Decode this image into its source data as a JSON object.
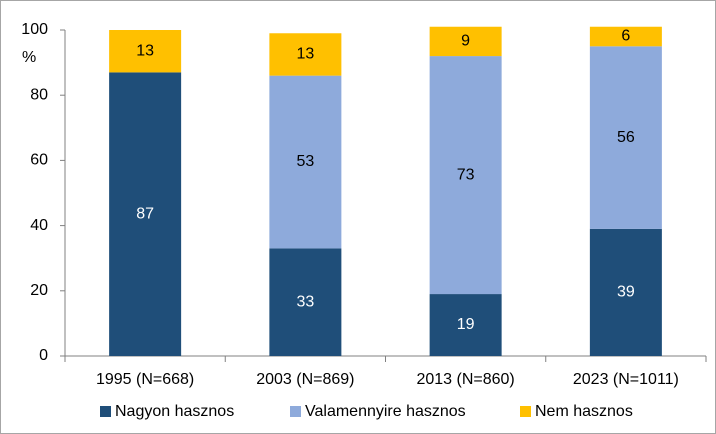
{
  "chart_data": {
    "type": "stacked_bar",
    "categories": [
      "1995 (N=668)",
      "2003 (N=869)",
      "2013 (N=860)",
      "2023 (N=1011)"
    ],
    "series": [
      {
        "name": "Nagyon hasznos",
        "color": "#1f4e79",
        "values": [
          87,
          33,
          19,
          39
        ]
      },
      {
        "name": "Valamennyire hasznos",
        "color": "#8eaadb",
        "values": [
          null,
          53,
          73,
          56
        ]
      },
      {
        "name": "Nem hasznos",
        "color": "#ffc000",
        "values": [
          13,
          13,
          9,
          6
        ]
      }
    ],
    "y_unit_label": "%",
    "ylim": [
      0,
      100
    ],
    "yticks": [
      0,
      20,
      40,
      60,
      80,
      100
    ],
    "grid": false,
    "legend": "bottom"
  }
}
